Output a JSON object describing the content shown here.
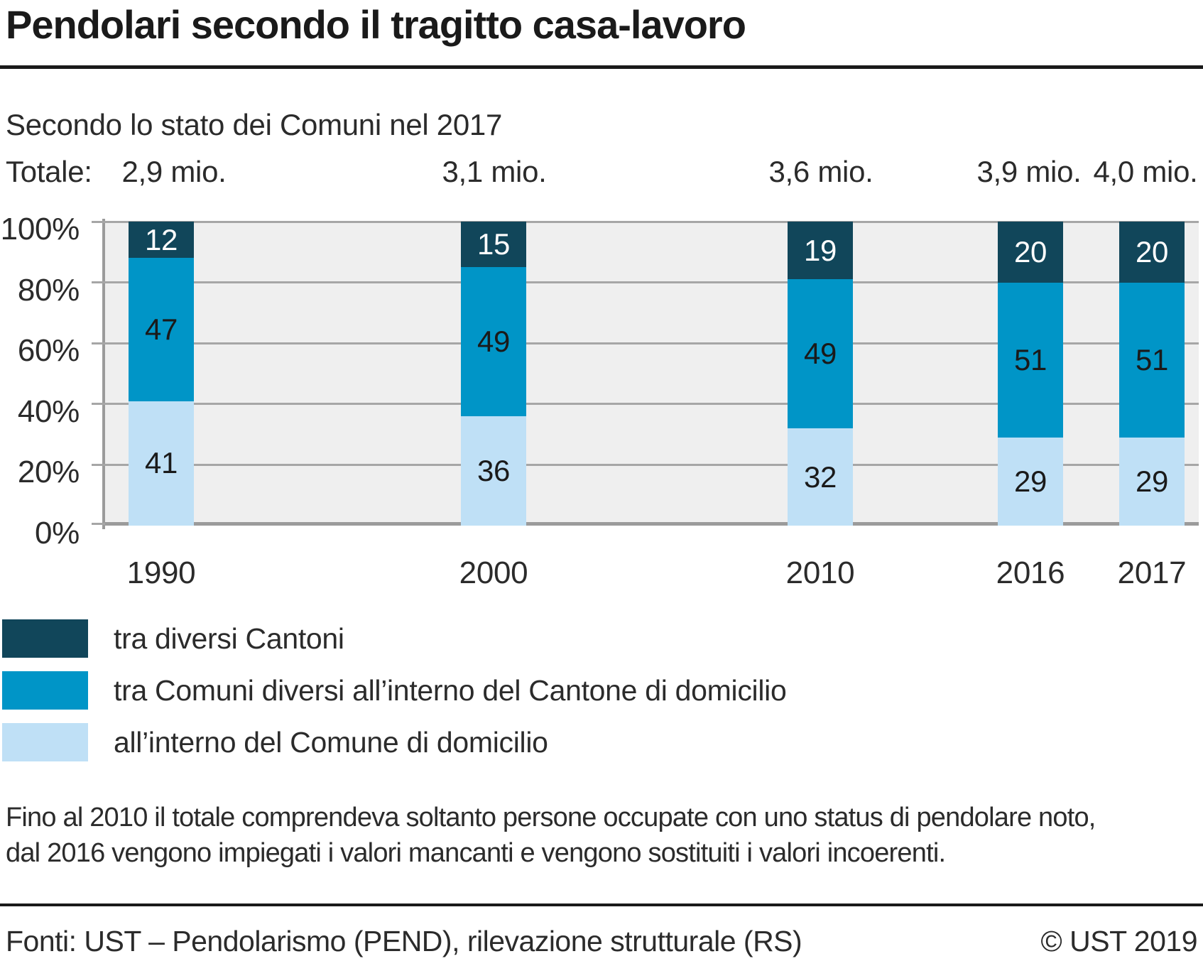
{
  "header": {
    "title": "Pendolari secondo il tragitto casa-lavoro"
  },
  "subtitle": "Secondo lo stato dei Comuni nel 2017",
  "totals_label": "Totale:",
  "chart_data": {
    "type": "bar",
    "stacked": true,
    "unit": "percent",
    "title": "Pendolari secondo il tragitto casa-lavoro",
    "subtitle": "Secondo lo stato dei Comuni nel 2017",
    "categories": [
      "1990",
      "2000",
      "2010",
      "2016",
      "2017"
    ],
    "totals": [
      "2,9 mio.",
      "3,1 mio.",
      "3,6 mio.",
      "3,9 mio.",
      "4,0 mio."
    ],
    "series": [
      {
        "name": "tra diversi Cantoni",
        "color": "#11465a",
        "label_color": "#ffffff",
        "values": [
          12,
          15,
          19,
          20,
          20
        ]
      },
      {
        "name": "tra Comuni diversi all’interno del Cantone di domicilio",
        "color": "#0095c7",
        "label_color": "#1a1a1a",
        "values": [
          47,
          49,
          49,
          51,
          51
        ]
      },
      {
        "name": "all’interno del Comune di domicilio",
        "color": "#bfe0f6",
        "label_color": "#1a1a1a",
        "values": [
          41,
          36,
          32,
          29,
          29
        ]
      }
    ],
    "y_ticks": [
      {
        "label": "0%",
        "value": 0
      },
      {
        "label": "20%",
        "value": 20
      },
      {
        "label": "40%",
        "value": 40
      },
      {
        "label": "60%",
        "value": 60
      },
      {
        "label": "80%",
        "value": 80
      },
      {
        "label": "100%",
        "value": 100
      }
    ],
    "ylim": [
      0,
      100
    ],
    "grid": true,
    "legend_position": "bottom-left",
    "plot_bg": "#efefef",
    "grid_color": "#a6a6a6",
    "axis_color": "#9b9b9b"
  },
  "footnote": {
    "line1": "Fino al 2010 il totale comprendeva soltanto persone occupate con uno status di pendolare noto,",
    "line2": "dal 2016 vengono impiegati i valori mancanti e vengono sostituiti i valori incoerenti."
  },
  "footer": {
    "source": "Fonti: UST – Pendolarismo (PEND), rilevazione strutturale (RS)",
    "copyright": "© UST 2019"
  }
}
